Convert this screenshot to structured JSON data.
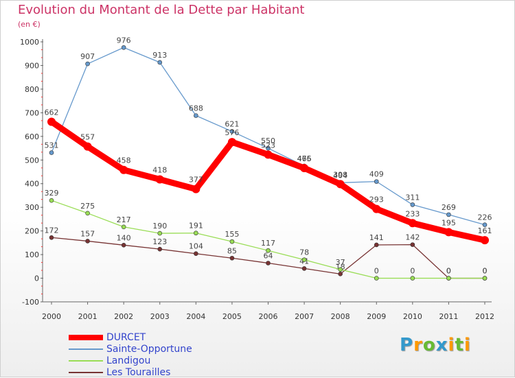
{
  "title": "Evolution du Montant de la Dette par Habitant",
  "unit_label": "(en €)",
  "chart_data": {
    "type": "line",
    "title": "Evolution du Montant de la Dette par Habitant",
    "ylabel": "(en €)",
    "x": [
      "2000",
      "2001",
      "2002",
      "2003",
      "2004",
      "2005",
      "2006",
      "2007",
      "2008",
      "2009",
      "2010",
      "2011",
      "2012"
    ],
    "ylim": [
      -100,
      1000
    ],
    "yticks": [
      -100,
      0,
      100,
      200,
      300,
      400,
      500,
      600,
      700,
      800,
      900,
      1000
    ],
    "grid": false,
    "legend_position": "bottom-left",
    "series": [
      {
        "name": "DURCET",
        "color": "#ff0000",
        "values": [
          662,
          557,
          458,
          418,
          377,
          576,
          523,
          466,
          398,
          293,
          233,
          195,
          161
        ]
      },
      {
        "name": "Sainte-Opportune",
        "color": "#6699cc",
        "values": [
          531,
          907,
          976,
          913,
          688,
          621,
          550,
          475,
          404,
          409,
          311,
          269,
          226
        ]
      },
      {
        "name": "Landigou",
        "color": "#99dd55",
        "values": [
          329,
          275,
          217,
          190,
          191,
          155,
          117,
          78,
          37,
          0,
          0,
          0,
          0
        ]
      },
      {
        "name": "Les Tourailles",
        "color": "#773333",
        "values": [
          172,
          157,
          140,
          123,
          104,
          85,
          64,
          41,
          18,
          141,
          142,
          0,
          0
        ]
      }
    ]
  },
  "logo": {
    "letters": [
      {
        "ch": "P",
        "color": "#3399cc"
      },
      {
        "ch": "r",
        "color": "#ff9900"
      },
      {
        "ch": "o",
        "color": "#66bb33"
      },
      {
        "ch": "x",
        "color": "#3399cc"
      },
      {
        "ch": "i",
        "color": "#ff9900"
      },
      {
        "ch": "t",
        "color": "#66bb33"
      },
      {
        "ch": "i",
        "color": "#ff9900"
      }
    ]
  }
}
